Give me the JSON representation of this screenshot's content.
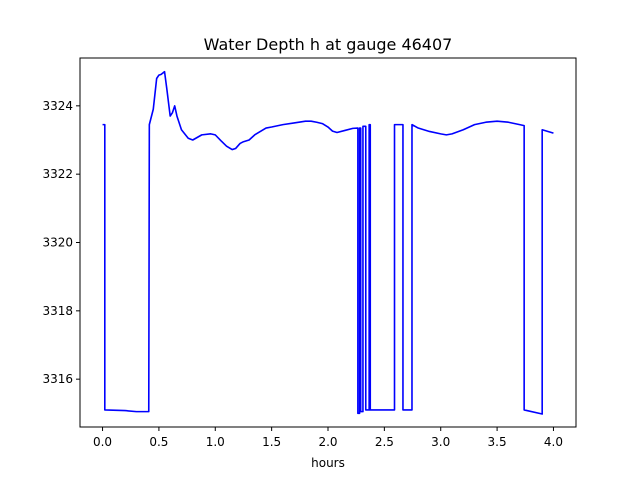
{
  "chart_data": {
    "type": "line",
    "title": "Water Depth h at gauge 46407",
    "xlabel": "hours",
    "ylabel": "",
    "xlim": [
      -0.2,
      4.2
    ],
    "ylim": [
      3314.6,
      3325.4
    ],
    "xticks": [
      0.0,
      0.5,
      1.0,
      1.5,
      2.0,
      2.5,
      3.0,
      3.5,
      4.0
    ],
    "xtick_labels": [
      "0.0",
      "0.5",
      "1.0",
      "1.5",
      "2.0",
      "2.5",
      "3.0",
      "3.5",
      "4.0"
    ],
    "yticks": [
      3316,
      3318,
      3320,
      3322,
      3324
    ],
    "ytick_labels": [
      "3316",
      "3318",
      "3320",
      "3322",
      "3324"
    ],
    "grid": false,
    "series": [
      {
        "color": "#0000ff",
        "x": [
          0.0,
          0.02,
          0.02,
          0.2,
          0.3,
          0.41,
          0.415,
          0.415,
          0.45,
          0.48,
          0.5,
          0.52,
          0.55,
          0.57,
          0.6,
          0.62,
          0.64,
          0.66,
          0.7,
          0.76,
          0.8,
          0.88,
          0.96,
          1.0,
          1.05,
          1.1,
          1.15,
          1.18,
          1.22,
          1.25,
          1.3,
          1.35,
          1.4,
          1.45,
          1.5,
          1.6,
          1.7,
          1.8,
          1.85,
          1.9,
          1.95,
          2.0,
          2.04,
          2.08,
          2.15,
          2.22,
          2.265,
          2.265,
          2.28,
          2.28,
          2.29,
          2.29,
          2.31,
          2.31,
          2.335,
          2.335,
          2.365,
          2.365,
          2.375,
          2.375,
          2.59,
          2.59,
          2.665,
          2.665,
          2.745,
          2.745,
          2.8,
          2.9,
          3.0,
          3.05,
          3.1,
          3.2,
          3.3,
          3.4,
          3.5,
          3.6,
          3.7,
          3.74,
          3.74,
          3.9,
          3.9,
          4.0
        ],
        "values": [
          3323.45,
          3323.45,
          3315.1,
          3315.08,
          3315.05,
          3315.05,
          3323.45,
          3323.45,
          3323.9,
          3324.8,
          3324.9,
          3324.92,
          3325.0,
          3324.5,
          3323.7,
          3323.8,
          3324.0,
          3323.7,
          3323.3,
          3323.05,
          3323.0,
          3323.15,
          3323.18,
          3323.15,
          3322.98,
          3322.82,
          3322.72,
          3322.75,
          3322.9,
          3322.95,
          3323.0,
          3323.15,
          3323.25,
          3323.35,
          3323.38,
          3323.45,
          3323.5,
          3323.55,
          3323.55,
          3323.52,
          3323.48,
          3323.38,
          3323.26,
          3323.22,
          3323.28,
          3323.34,
          3323.35,
          3315.0,
          3315.0,
          3323.35,
          3323.35,
          3315.05,
          3315.05,
          3323.4,
          3323.4,
          3315.1,
          3315.1,
          3323.45,
          3323.45,
          3315.1,
          3315.1,
          3323.45,
          3323.45,
          3315.1,
          3315.1,
          3323.45,
          3323.35,
          3323.25,
          3323.18,
          3323.15,
          3323.18,
          3323.3,
          3323.45,
          3323.52,
          3323.55,
          3323.52,
          3323.45,
          3323.42,
          3315.1,
          3314.98,
          3323.3,
          3323.2
        ]
      }
    ]
  }
}
